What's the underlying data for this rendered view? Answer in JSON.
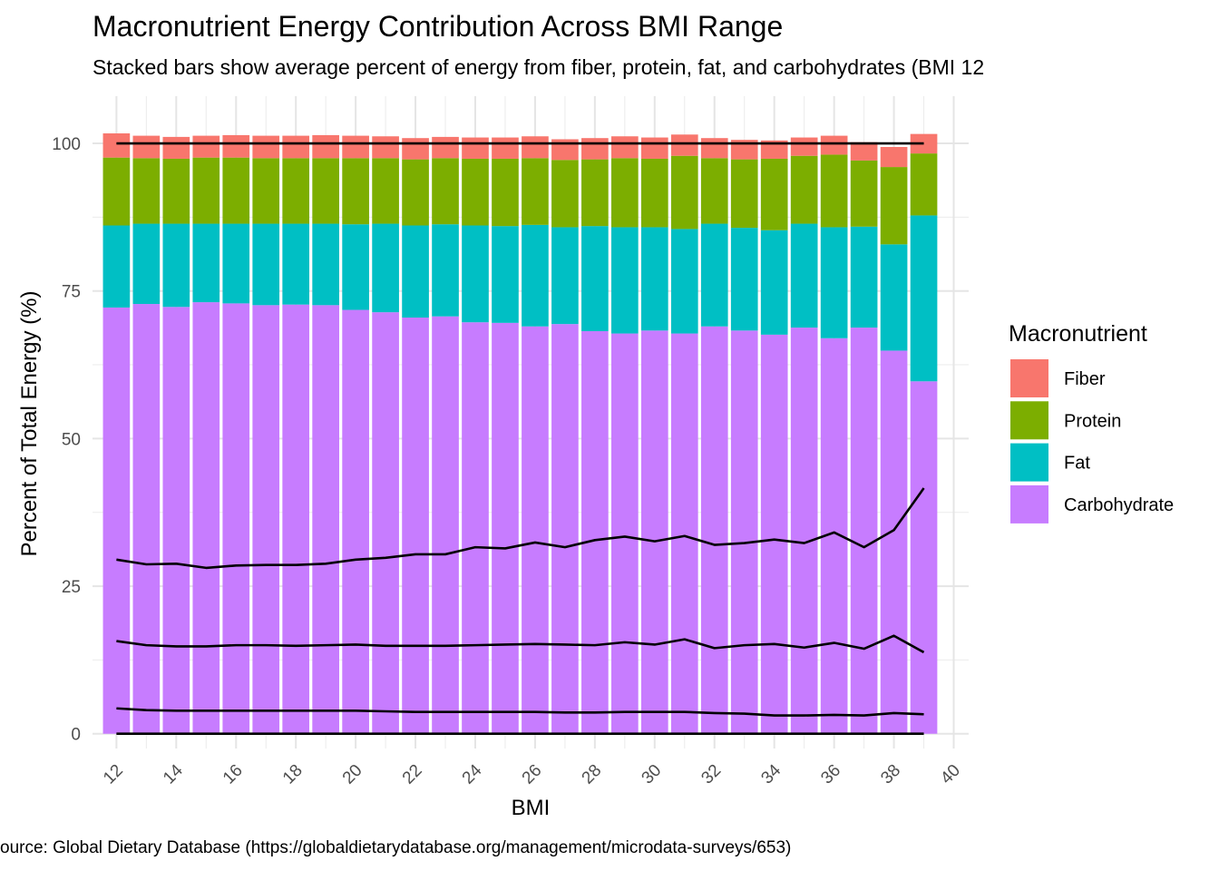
{
  "chart_data": {
    "type": "bar",
    "stacked": true,
    "title": "Macronutrient Energy Contribution Across BMI Range",
    "subtitle": "Stacked bars show average percent of energy from fiber, protein, fat, and carbohydrates (BMI 12",
    "xlabel": "BMI",
    "ylabel": "Percent of Total Energy (%)",
    "caption": "ource: Global Dietary Database (https://globaldietarydatabase.org/management/microdata-surveys/653)",
    "legend_title": "Macronutrient",
    "legend_position": "right",
    "xlim": [
      11.2,
      40.5
    ],
    "ylim": [
      -2.5,
      108
    ],
    "x_ticks": [
      12,
      14,
      16,
      18,
      20,
      22,
      24,
      26,
      28,
      30,
      32,
      34,
      36,
      38,
      40
    ],
    "y_ticks": [
      0,
      25,
      50,
      75,
      100
    ],
    "grid": true,
    "categories": [
      12,
      13,
      14,
      15,
      16,
      17,
      18,
      19,
      20,
      21,
      22,
      23,
      24,
      25,
      26,
      27,
      28,
      29,
      30,
      31,
      32,
      33,
      34,
      35,
      36,
      37,
      38,
      39
    ],
    "series": [
      {
        "name": "Carbohydrate",
        "color": "#C77CFF",
        "values": [
          72.2,
          72.8,
          72.3,
          73.1,
          72.9,
          72.6,
          72.7,
          72.6,
          71.8,
          71.4,
          70.5,
          70.7,
          69.7,
          69.6,
          69.0,
          69.4,
          68.2,
          67.8,
          68.3,
          67.8,
          69.0,
          68.3,
          67.6,
          68.8,
          67.0,
          68.8,
          64.9,
          59.7
        ]
      },
      {
        "name": "Fat",
        "color": "#00BFC4",
        "values": [
          13.9,
          13.6,
          14.1,
          13.3,
          13.5,
          13.8,
          13.7,
          13.8,
          14.5,
          15.0,
          15.6,
          15.6,
          16.4,
          16.4,
          17.2,
          16.4,
          17.8,
          18.0,
          17.5,
          17.7,
          17.4,
          17.4,
          17.7,
          17.6,
          18.8,
          17.1,
          18.0,
          28.1
        ]
      },
      {
        "name": "Protein",
        "color": "#7CAE00",
        "values": [
          11.5,
          11.1,
          11.0,
          11.2,
          11.2,
          11.1,
          11.1,
          11.1,
          11.2,
          11.1,
          11.2,
          11.2,
          11.3,
          11.4,
          11.3,
          11.4,
          11.3,
          11.7,
          11.6,
          12.4,
          11.1,
          11.6,
          12.1,
          11.5,
          12.3,
          11.2,
          13.1,
          10.5
        ]
      },
      {
        "name": "Fiber",
        "color": "#F8766D",
        "values": [
          4.1,
          3.8,
          3.7,
          3.7,
          3.8,
          3.8,
          3.8,
          3.9,
          3.8,
          3.7,
          3.6,
          3.6,
          3.6,
          3.6,
          3.7,
          3.5,
          3.6,
          3.7,
          3.6,
          3.6,
          3.4,
          3.3,
          3.1,
          3.1,
          3.2,
          3.1,
          3.4,
          3.3
        ]
      }
    ],
    "overlay_lines": [
      {
        "color": "#000000",
        "values": [
          0,
          0,
          0,
          0,
          0,
          0,
          0,
          0,
          0,
          0,
          0,
          0,
          0,
          0,
          0,
          0,
          0,
          0,
          0,
          0,
          0,
          0,
          0,
          0,
          0,
          0,
          0,
          0
        ]
      },
      {
        "color": "#000000",
        "values": [
          4.3,
          4.0,
          3.9,
          3.9,
          3.9,
          3.9,
          3.9,
          3.9,
          3.9,
          3.8,
          3.7,
          3.7,
          3.7,
          3.7,
          3.7,
          3.6,
          3.6,
          3.7,
          3.7,
          3.7,
          3.5,
          3.4,
          3.1,
          3.1,
          3.2,
          3.1,
          3.5,
          3.3
        ]
      },
      {
        "color": "#000000",
        "values": [
          15.7,
          15.0,
          14.8,
          14.8,
          15.0,
          15.0,
          14.9,
          15.0,
          15.1,
          14.9,
          14.9,
          14.9,
          15.0,
          15.1,
          15.2,
          15.1,
          15.0,
          15.5,
          15.1,
          16.0,
          14.5,
          15.0,
          15.2,
          14.6,
          15.4,
          14.4,
          16.6,
          13.8
        ]
      },
      {
        "color": "#000000",
        "values": [
          29.5,
          28.7,
          28.8,
          28.1,
          28.5,
          28.6,
          28.6,
          28.8,
          29.5,
          29.8,
          30.4,
          30.4,
          31.6,
          31.4,
          32.4,
          31.6,
          32.8,
          33.4,
          32.6,
          33.5,
          32.0,
          32.3,
          32.9,
          32.3,
          34.1,
          31.6,
          34.5,
          41.6
        ]
      },
      {
        "color": "#000000",
        "values": [
          100,
          100,
          100,
          100,
          100,
          100,
          100,
          100,
          100,
          100,
          100,
          100,
          100,
          100,
          100,
          100,
          100,
          100,
          100,
          100,
          100,
          100,
          100,
          100,
          100,
          100,
          100,
          100
        ]
      }
    ],
    "legend_order": [
      "Fiber",
      "Protein",
      "Fat",
      "Carbohydrate"
    ]
  }
}
